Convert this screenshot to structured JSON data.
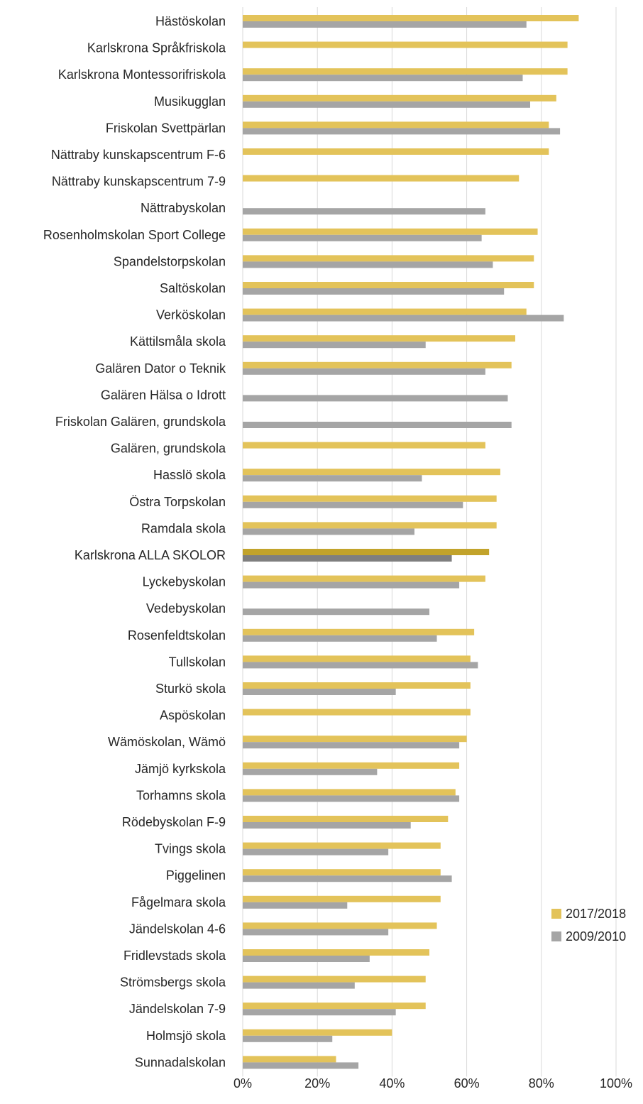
{
  "chart_data": {
    "type": "bar",
    "orientation": "horizontal",
    "title": "",
    "xlabel": "",
    "ylabel": "",
    "xlim": [
      0,
      1
    ],
    "x_ticks": [
      "0%",
      "20%",
      "40%",
      "60%",
      "80%",
      "100%"
    ],
    "grid": "vertical",
    "legend_position": "right",
    "highlight_category": "Karlskrona ALLA SKOLOR",
    "categories": [
      "Hästöskolan",
      "Karlskrona Språkfriskola",
      "Karlskrona Montessorifriskola",
      "Musikugglan",
      "Friskolan Svettpärlan",
      "Nättraby kunskapscentrum F-6",
      "Nättraby kunskapscentrum 7-9",
      "Nättrabyskolan",
      "Rosenholmskolan Sport College",
      "Spandelstorpskolan",
      "Saltöskolan",
      "Verköskolan",
      "Kättilsmåla skola",
      "Galären Dator o Teknik",
      "Galären Hälsa o Idrott",
      "Friskolan Galären, grundskola",
      "Galären, grundskola",
      "Hasslö skola",
      "Östra Torpskolan",
      "Ramdala skola",
      "Karlskrona ALLA SKOLOR",
      "Lyckebyskolan",
      "Vedebyskolan",
      "Rosenfeldtskolan",
      "Tullskolan",
      "Sturkö skola",
      "Aspöskolan",
      "Wämöskolan, Wämö",
      "Jämjö kyrkskola",
      "Torhamns skola",
      "Rödebyskolan F-9",
      "Tvings skola",
      "Piggelinen",
      "Fågelmara skola",
      "Jändelskolan 4-6",
      "Fridlevstads skola",
      "Strömsbergs skola",
      "Jändelskolan 7-9",
      "Holmsjö skola",
      "Sunnadalskolan"
    ],
    "series": [
      {
        "name": "2017/2018",
        "color": "#e3c35a",
        "highlight_color": "#c2a32b",
        "values": [
          0.9,
          0.87,
          0.87,
          0.84,
          0.82,
          0.82,
          0.74,
          null,
          0.79,
          0.78,
          0.78,
          0.76,
          0.73,
          0.72,
          null,
          null,
          0.65,
          0.69,
          0.68,
          0.68,
          0.66,
          0.65,
          null,
          0.62,
          0.61,
          0.61,
          0.61,
          0.6,
          0.58,
          0.57,
          0.55,
          0.53,
          0.53,
          0.53,
          0.52,
          0.5,
          0.49,
          0.49,
          0.4,
          0.25
        ]
      },
      {
        "name": "2009/2010",
        "color": "#a5a5a5",
        "highlight_color": "#7f7f7f",
        "values": [
          0.76,
          null,
          0.75,
          0.77,
          0.85,
          null,
          null,
          0.65,
          0.64,
          0.67,
          0.7,
          0.86,
          0.49,
          0.65,
          0.71,
          0.72,
          null,
          0.48,
          0.59,
          0.46,
          0.56,
          0.58,
          0.5,
          0.52,
          0.63,
          0.41,
          null,
          0.58,
          0.36,
          0.58,
          0.45,
          0.39,
          0.56,
          0.28,
          0.39,
          0.34,
          0.3,
          0.41,
          0.24,
          0.31
        ]
      }
    ]
  }
}
